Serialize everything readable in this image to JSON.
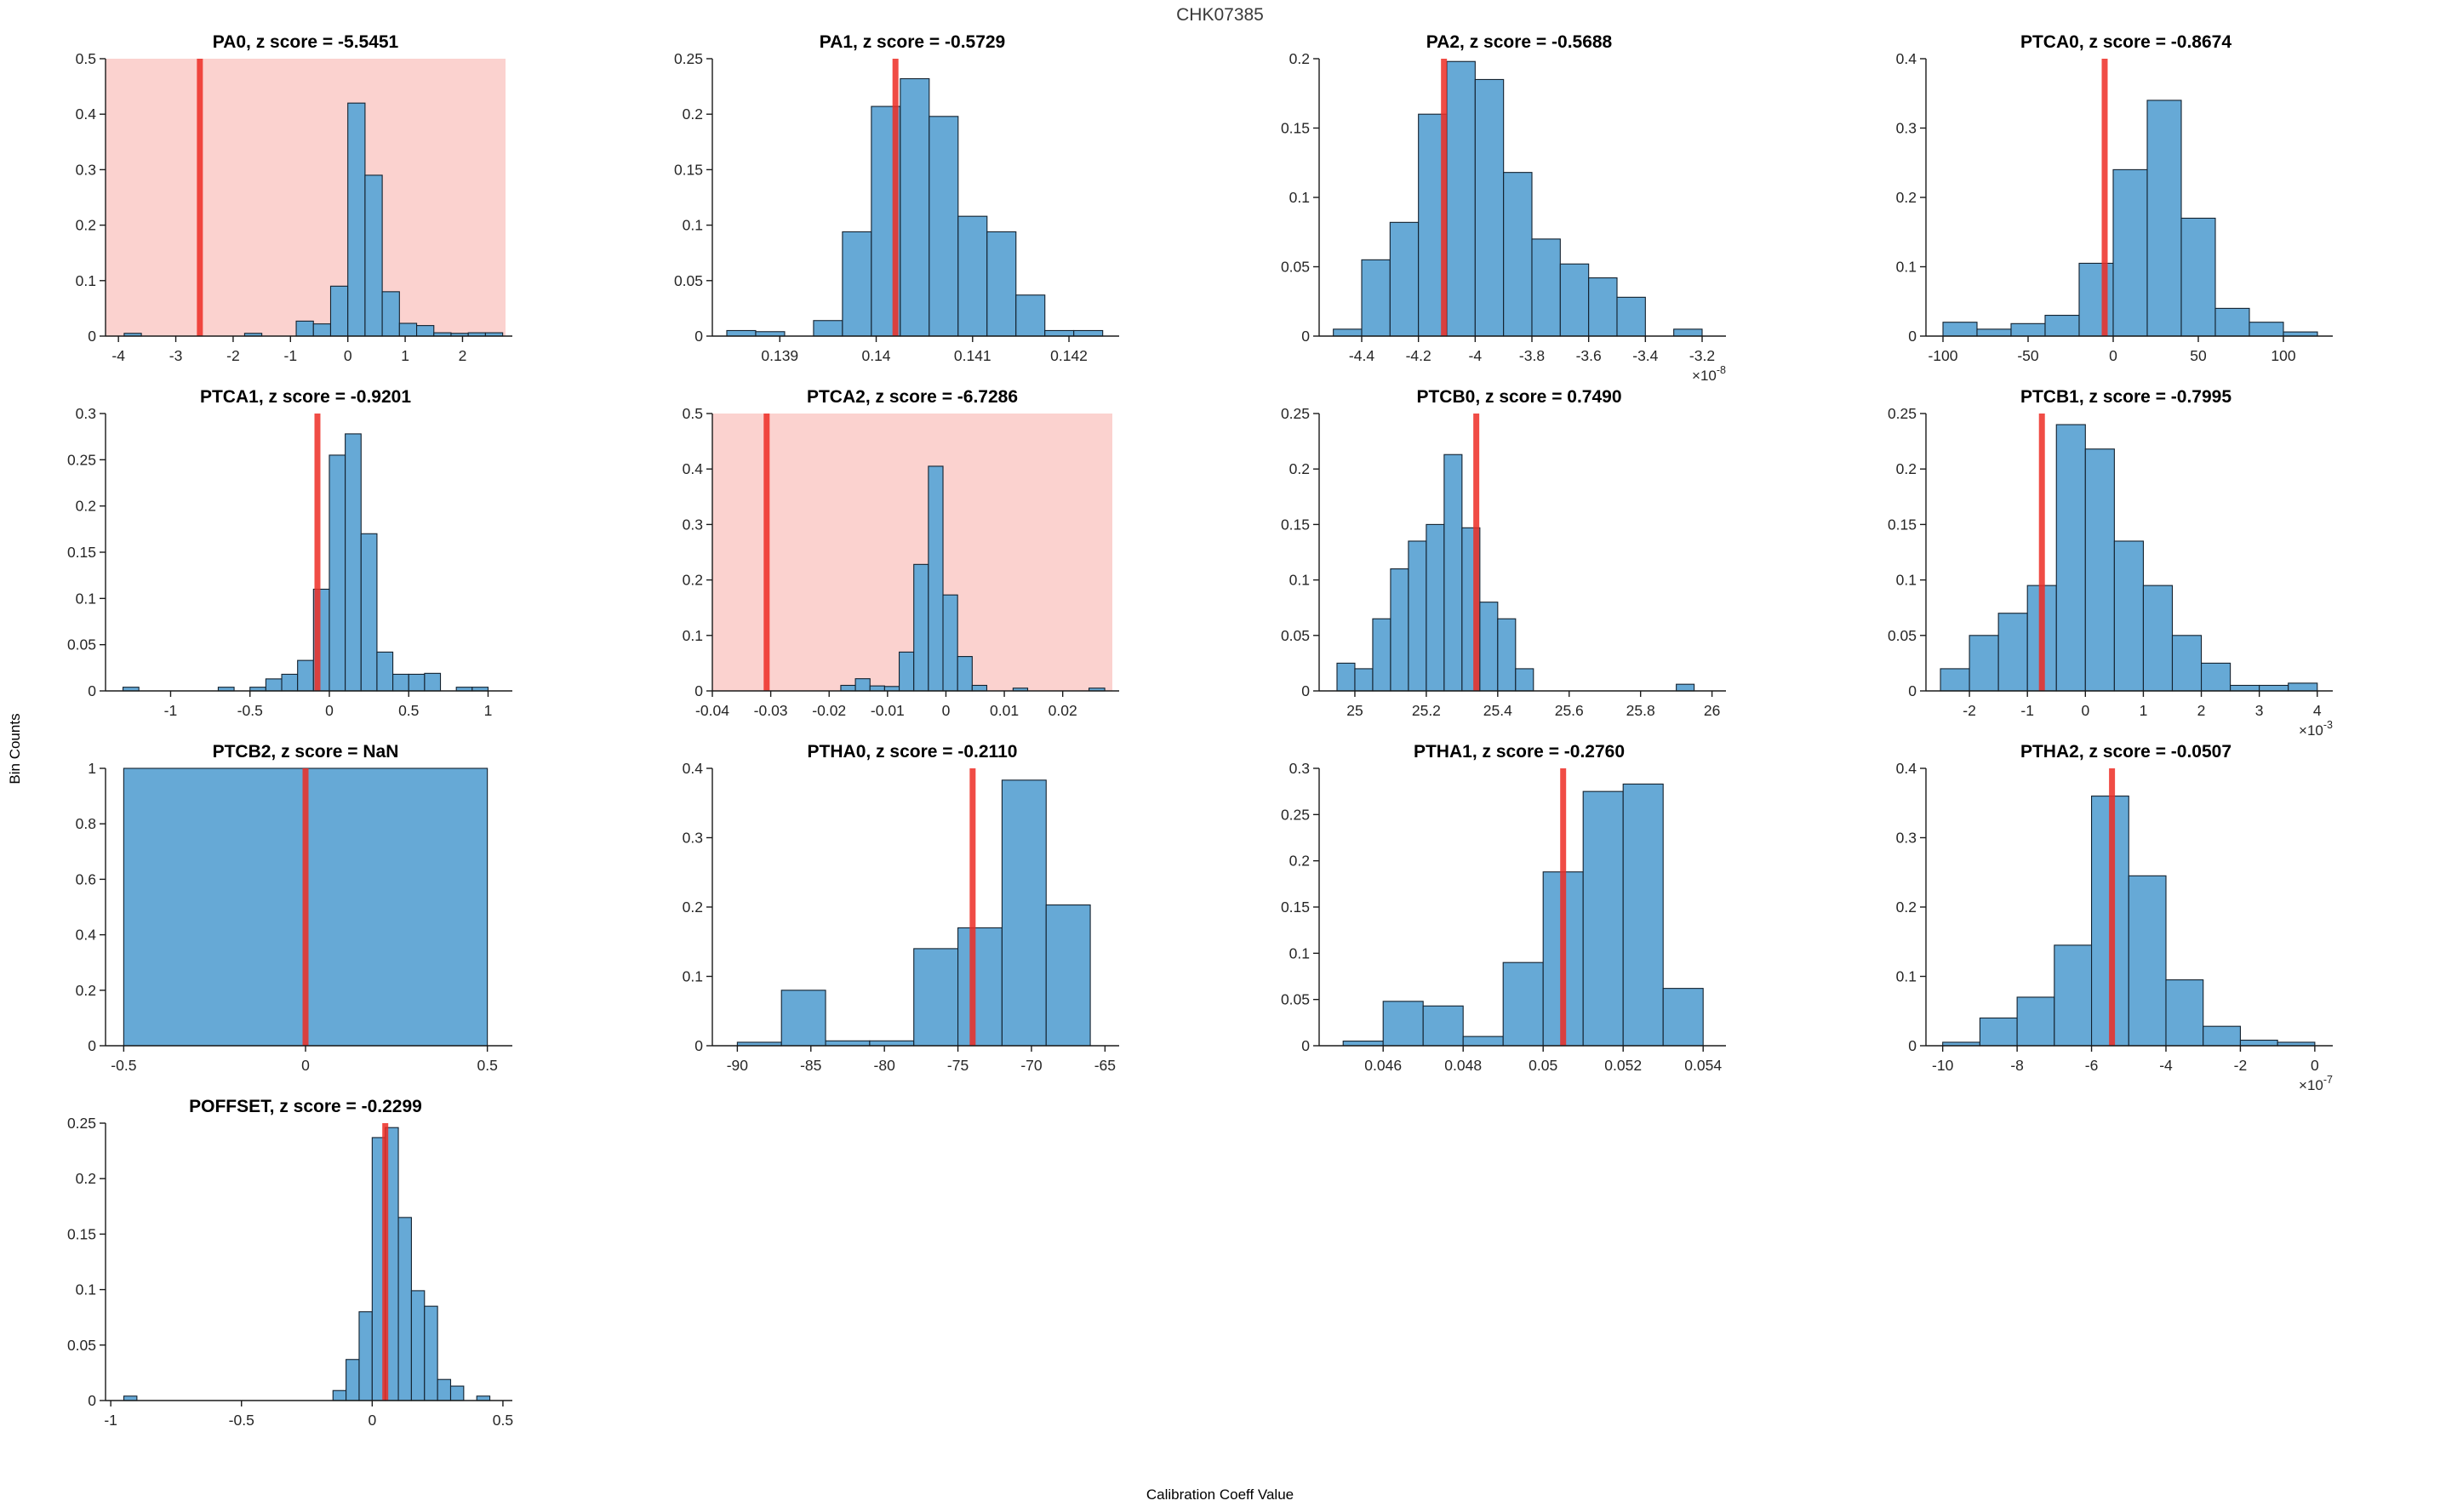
{
  "figure": {
    "title": "CHK07385",
    "ylabel": "Bin Counts",
    "xlabel": "Calibration Coeff Value",
    "colors": {
      "bar_fill": "#66a9d6",
      "bar_edge": "#13212e",
      "red_line": "#ed2d24",
      "alert_background": "#fbd2cf",
      "tick_label": "#262626",
      "axis": "#1a1a1a"
    }
  },
  "chart_data": [
    {
      "type": "histogram",
      "name": "PA0",
      "title": "PA0, z score = -5.5451",
      "z_score": "-5.5451",
      "alert": true,
      "xlim": [
        -4.225,
        2.75
      ],
      "ylim": [
        0,
        0.5
      ],
      "xticks": [
        -4,
        -3,
        -2,
        -1,
        0,
        1,
        2
      ],
      "xtick_labels": [
        "-4",
        "-3",
        "-2",
        "-1",
        "0",
        "1",
        "2"
      ],
      "yticks": [
        0,
        0.1,
        0.2,
        0.3,
        0.4,
        0.5
      ],
      "ytick_labels": [
        "0",
        "0.1",
        "0.2",
        "0.3",
        "0.4",
        "0.5"
      ],
      "exponent": null,
      "red_line_x": -2.58,
      "bars": [
        [
          -3.9,
          -3.6,
          0.005
        ],
        [
          -1.8,
          -1.5,
          0.005
        ],
        [
          -0.9,
          -0.6,
          0.027
        ],
        [
          -0.6,
          -0.3,
          0.022
        ],
        [
          -0.3,
          0,
          0.09
        ],
        [
          0,
          0.3,
          0.42
        ],
        [
          0.3,
          0.6,
          0.29
        ],
        [
          0.6,
          0.9,
          0.08
        ],
        [
          0.9,
          1.2,
          0.023
        ],
        [
          1.2,
          1.5,
          0.019
        ],
        [
          1.5,
          1.8,
          0.006
        ],
        [
          1.8,
          2.1,
          0.005
        ],
        [
          2.1,
          2.4,
          0.006
        ],
        [
          2.4,
          2.7,
          0.006
        ]
      ]
    },
    {
      "type": "histogram",
      "name": "PA1",
      "title": "PA1, z score = -0.5729",
      "z_score": "-0.5729",
      "alert": false,
      "xlim": [
        0.1383,
        0.14245
      ],
      "ylim": [
        0,
        0.25
      ],
      "xticks": [
        0.139,
        0.14,
        0.141,
        0.142
      ],
      "xtick_labels": [
        "0.139",
        "0.14",
        "0.141",
        "0.142"
      ],
      "yticks": [
        0,
        0.05,
        0.1,
        0.15,
        0.2,
        0.25
      ],
      "ytick_labels": [
        "0",
        "0.05",
        "0.1",
        "0.15",
        "0.2",
        "0.25"
      ],
      "exponent": null,
      "red_line_x": 0.1402,
      "bars": [
        [
          0.13845,
          0.13875,
          0.005
        ],
        [
          0.13875,
          0.13905,
          0.004
        ],
        [
          0.13935,
          0.13965,
          0.014
        ],
        [
          0.13965,
          0.13995,
          0.094
        ],
        [
          0.13995,
          0.14025,
          0.207
        ],
        [
          0.14025,
          0.14055,
          0.232
        ],
        [
          0.14055,
          0.14085,
          0.198
        ],
        [
          0.14085,
          0.14115,
          0.108
        ],
        [
          0.14115,
          0.14145,
          0.094
        ],
        [
          0.14145,
          0.14175,
          0.037
        ],
        [
          0.14175,
          0.14205,
          0.005
        ],
        [
          0.14205,
          0.14235,
          0.005
        ]
      ]
    },
    {
      "type": "histogram",
      "name": "PA2",
      "title": "PA2, z score = -0.5688",
      "z_score": "-0.5688",
      "alert": false,
      "xlim": [
        -4.55,
        -3.14
      ],
      "ylim": [
        0,
        0.2
      ],
      "xticks": [
        -4.4,
        -4.2,
        -4,
        -3.8,
        -3.6,
        -3.4,
        -3.2
      ],
      "xtick_labels": [
        "-4.4",
        "-4.2",
        "-4",
        "-3.8",
        "-3.6",
        "-3.4",
        "-3.2"
      ],
      "yticks": [
        0,
        0.05,
        0.1,
        0.15,
        0.2
      ],
      "ytick_labels": [
        "0",
        "0.05",
        "0.1",
        "0.15",
        "0.2"
      ],
      "exponent": "-8",
      "red_line_x": -4.11,
      "bars": [
        [
          -4.5,
          -4.4,
          0.005
        ],
        [
          -4.4,
          -4.3,
          0.055
        ],
        [
          -4.3,
          -4.2,
          0.082
        ],
        [
          -4.2,
          -4.1,
          0.16
        ],
        [
          -4.1,
          -4.0,
          0.198
        ],
        [
          -4.0,
          -3.9,
          0.185
        ],
        [
          -3.9,
          -3.8,
          0.118
        ],
        [
          -3.8,
          -3.7,
          0.07
        ],
        [
          -3.7,
          -3.6,
          0.052
        ],
        [
          -3.6,
          -3.5,
          0.042
        ],
        [
          -3.5,
          -3.4,
          0.028
        ],
        [
          -3.3,
          -3.2,
          0.005
        ]
      ]
    },
    {
      "type": "histogram",
      "name": "PTCA0",
      "title": "PTCA0, z score = -0.8674",
      "z_score": "-0.8674",
      "alert": false,
      "xlim": [
        -110,
        125
      ],
      "ylim": [
        0,
        0.4
      ],
      "xticks": [
        -100,
        -50,
        0,
        50,
        100
      ],
      "xtick_labels": [
        "-100",
        "-50",
        "0",
        "50",
        "100"
      ],
      "yticks": [
        0,
        0.1,
        0.2,
        0.3,
        0.4
      ],
      "ytick_labels": [
        "0",
        "0.1",
        "0.2",
        "0.3",
        "0.4"
      ],
      "exponent": null,
      "red_line_x": -5,
      "bars": [
        [
          -100,
          -80,
          0.02
        ],
        [
          -80,
          -60,
          0.01
        ],
        [
          -60,
          -40,
          0.018
        ],
        [
          -40,
          -20,
          0.03
        ],
        [
          -20,
          0,
          0.105
        ],
        [
          0,
          20,
          0.24
        ],
        [
          20,
          40,
          0.34
        ],
        [
          40,
          60,
          0.17
        ],
        [
          60,
          80,
          0.04
        ],
        [
          80,
          100,
          0.02
        ],
        [
          100,
          120,
          0.006
        ]
      ]
    },
    {
      "type": "histogram",
      "name": "PTCA1",
      "title": "PTCA1, z score = -0.9201",
      "z_score": "-0.9201",
      "alert": false,
      "xlim": [
        -1.41,
        1.11
      ],
      "ylim": [
        0,
        0.3
      ],
      "xticks": [
        -1,
        -0.5,
        0,
        0.5,
        1
      ],
      "xtick_labels": [
        "-1",
        "-0.5",
        "0",
        "0.5",
        "1"
      ],
      "yticks": [
        0,
        0.05,
        0.1,
        0.15,
        0.2,
        0.25,
        0.3
      ],
      "ytick_labels": [
        "0",
        "0.05",
        "0.1",
        "0.15",
        "0.2",
        "0.25",
        "0.3"
      ],
      "exponent": null,
      "red_line_x": -0.075,
      "bars": [
        [
          -1.3,
          -1.2,
          0.004
        ],
        [
          -0.7,
          -0.6,
          0.004
        ],
        [
          -0.5,
          -0.4,
          0.004
        ],
        [
          -0.4,
          -0.3,
          0.013
        ],
        [
          -0.3,
          -0.2,
          0.018
        ],
        [
          -0.2,
          -0.1,
          0.033
        ],
        [
          -0.1,
          0,
          0.11
        ],
        [
          0,
          0.1,
          0.255
        ],
        [
          0.1,
          0.2,
          0.278
        ],
        [
          0.2,
          0.3,
          0.17
        ],
        [
          0.3,
          0.4,
          0.042
        ],
        [
          0.4,
          0.5,
          0.018
        ],
        [
          0.5,
          0.6,
          0.018
        ],
        [
          0.6,
          0.7,
          0.019
        ],
        [
          0.8,
          0.9,
          0.004
        ],
        [
          0.9,
          1.0,
          0.004
        ]
      ]
    },
    {
      "type": "histogram",
      "name": "PTCA2",
      "title": "PTCA2, z score = -6.7286",
      "z_score": "-6.7286",
      "alert": true,
      "xlim": [
        -0.04,
        0.0285
      ],
      "ylim": [
        0,
        0.5
      ],
      "xticks": [
        -0.04,
        -0.03,
        -0.02,
        -0.01,
        0,
        0.01,
        0.02
      ],
      "xtick_labels": [
        "-0.04",
        "-0.03",
        "-0.02",
        "-0.01",
        "0",
        "0.01",
        "0.02"
      ],
      "yticks": [
        0,
        0.1,
        0.2,
        0.3,
        0.4,
        0.5
      ],
      "ytick_labels": [
        "0",
        "0.1",
        "0.2",
        "0.3",
        "0.4",
        "0.5"
      ],
      "exponent": null,
      "red_line_x": -0.0307,
      "bars": [
        [
          -0.018,
          -0.0155,
          0.01
        ],
        [
          -0.0155,
          -0.013,
          0.022
        ],
        [
          -0.013,
          -0.0105,
          0.009
        ],
        [
          -0.0105,
          -0.008,
          0.008
        ],
        [
          -0.008,
          -0.0055,
          0.07
        ],
        [
          -0.0055,
          -0.003,
          0.228
        ],
        [
          -0.003,
          -0.0005,
          0.405
        ],
        [
          -0.0005,
          0.002,
          0.173
        ],
        [
          0.002,
          0.0045,
          0.062
        ],
        [
          0.0045,
          0.007,
          0.01
        ],
        [
          0.0115,
          0.014,
          0.005
        ],
        [
          0.0245,
          0.0272,
          0.005
        ]
      ]
    },
    {
      "type": "histogram",
      "name": "PTCB0",
      "title": "PTCB0, z score = 0.7490",
      "z_score": "0.7490",
      "alert": false,
      "xlim": [
        24.9,
        26.02
      ],
      "ylim": [
        0,
        0.25
      ],
      "xticks": [
        25,
        25.2,
        25.4,
        25.6,
        25.8,
        26
      ],
      "xtick_labels": [
        "25",
        "25.2",
        "25.4",
        "25.6",
        "25.8",
        "26"
      ],
      "yticks": [
        0,
        0.05,
        0.1,
        0.15,
        0.2,
        0.25
      ],
      "ytick_labels": [
        "0",
        "0.05",
        "0.1",
        "0.15",
        "0.2",
        "0.25"
      ],
      "exponent": null,
      "red_line_x": 25.34,
      "bars": [
        [
          24.95,
          25.0,
          0.025
        ],
        [
          25.0,
          25.05,
          0.02
        ],
        [
          25.05,
          25.1,
          0.065
        ],
        [
          25.1,
          25.15,
          0.11
        ],
        [
          25.15,
          25.2,
          0.135
        ],
        [
          25.2,
          25.25,
          0.15
        ],
        [
          25.25,
          25.3,
          0.213
        ],
        [
          25.3,
          25.35,
          0.147
        ],
        [
          25.35,
          25.4,
          0.08
        ],
        [
          25.4,
          25.45,
          0.065
        ],
        [
          25.45,
          25.5,
          0.02
        ],
        [
          25.9,
          25.95,
          0.006
        ]
      ]
    },
    {
      "type": "histogram",
      "name": "PTCB1",
      "title": "PTCB1, z score = -0.7995",
      "z_score": "-0.7995",
      "alert": false,
      "xlim": [
        -2.75,
        4.15
      ],
      "ylim": [
        0,
        0.25
      ],
      "xticks": [
        -2,
        -1,
        0,
        1,
        2,
        3,
        4
      ],
      "xtick_labels": [
        "-2",
        "-1",
        "0",
        "1",
        "2",
        "3",
        "4"
      ],
      "yticks": [
        0,
        0.05,
        0.1,
        0.15,
        0.2,
        0.25
      ],
      "ytick_labels": [
        "0",
        "0.05",
        "0.1",
        "0.15",
        "0.2",
        "0.25"
      ],
      "exponent": "-3",
      "red_line_x": -0.75,
      "bars": [
        [
          -2.5,
          -2,
          0.02
        ],
        [
          -2,
          -1.5,
          0.05
        ],
        [
          -1.5,
          -1,
          0.07
        ],
        [
          -1,
          -0.5,
          0.095
        ],
        [
          -0.5,
          0,
          0.24
        ],
        [
          0,
          0.5,
          0.218
        ],
        [
          0.5,
          1,
          0.135
        ],
        [
          1,
          1.5,
          0.095
        ],
        [
          1.5,
          2,
          0.05
        ],
        [
          2,
          2.5,
          0.025
        ],
        [
          2.5,
          3,
          0.005
        ],
        [
          3,
          3.5,
          0.005
        ],
        [
          3.5,
          4,
          0.007
        ]
      ]
    },
    {
      "type": "histogram",
      "name": "PTCB2",
      "title": "PTCB2, z score = NaN",
      "z_score": "NaN",
      "alert": false,
      "xlim": [
        -0.55,
        0.55
      ],
      "ylim": [
        0,
        1
      ],
      "xticks": [
        -0.5,
        0,
        0.5
      ],
      "xtick_labels": [
        "-0.5",
        "0",
        "0.5"
      ],
      "yticks": [
        0,
        0.2,
        0.4,
        0.6,
        0.8,
        1
      ],
      "ytick_labels": [
        "0",
        "0.2",
        "0.4",
        "0.6",
        "0.8",
        "1"
      ],
      "exponent": null,
      "red_line_x": 0,
      "bars": [
        [
          -0.5,
          0.5,
          1
        ]
      ]
    },
    {
      "type": "histogram",
      "name": "PTHA0",
      "title": "PTHA0, z score = -0.2110",
      "z_score": "-0.2110",
      "alert": false,
      "xlim": [
        -91.7,
        -64.5
      ],
      "ylim": [
        0,
        0.4
      ],
      "xticks": [
        -90,
        -85,
        -80,
        -75,
        -70,
        -65
      ],
      "xtick_labels": [
        "-90",
        "-85",
        "-80",
        "-75",
        "-70",
        "-65"
      ],
      "yticks": [
        0,
        0.1,
        0.2,
        0.3,
        0.4
      ],
      "ytick_labels": [
        "0",
        "0.1",
        "0.2",
        "0.3",
        "0.4"
      ],
      "exponent": null,
      "red_line_x": -74,
      "bars": [
        [
          -90,
          -87,
          0.005
        ],
        [
          -87,
          -84,
          0.08
        ],
        [
          -84,
          -81,
          0.007
        ],
        [
          -81,
          -78,
          0.007
        ],
        [
          -78,
          -75,
          0.14
        ],
        [
          -75,
          -72,
          0.17
        ],
        [
          -72,
          -69,
          0.383
        ],
        [
          -69,
          -66,
          0.203
        ]
      ]
    },
    {
      "type": "histogram",
      "name": "PTHA1",
      "title": "PTHA1, z score = -0.2760",
      "z_score": "-0.2760",
      "alert": false,
      "xlim": [
        0.0444,
        0.0544
      ],
      "ylim": [
        0,
        0.3
      ],
      "xticks": [
        0.046,
        0.048,
        0.05,
        0.052,
        0.054
      ],
      "xtick_labels": [
        "0.046",
        "0.048",
        "0.05",
        "0.052",
        "0.054"
      ],
      "yticks": [
        0,
        0.05,
        0.1,
        0.15,
        0.2,
        0.25,
        0.3
      ],
      "ytick_labels": [
        "0",
        "0.05",
        "0.1",
        "0.15",
        "0.2",
        "0.25",
        "0.3"
      ],
      "exponent": null,
      "red_line_x": 0.0505,
      "bars": [
        [
          0.045,
          0.046,
          0.005
        ],
        [
          0.046,
          0.047,
          0.048
        ],
        [
          0.047,
          0.048,
          0.043
        ],
        [
          0.048,
          0.049,
          0.01
        ],
        [
          0.049,
          0.05,
          0.09
        ],
        [
          0.05,
          0.051,
          0.188
        ],
        [
          0.051,
          0.052,
          0.275
        ],
        [
          0.052,
          0.053,
          0.283
        ],
        [
          0.053,
          0.054,
          0.062
        ]
      ]
    },
    {
      "type": "histogram",
      "name": "PTHA2",
      "title": "PTHA2, z score = -0.0507",
      "z_score": "-0.0507",
      "alert": false,
      "xlim": [
        -10.45,
        0.3
      ],
      "ylim": [
        0,
        0.4
      ],
      "xticks": [
        -10,
        -8,
        -6,
        -4,
        -2,
        0
      ],
      "xtick_labels": [
        "-10",
        "-8",
        "-6",
        "-4",
        "-2",
        "0"
      ],
      "yticks": [
        0,
        0.1,
        0.2,
        0.3,
        0.4
      ],
      "ytick_labels": [
        "0",
        "0.1",
        "0.2",
        "0.3",
        "0.4"
      ],
      "exponent": "-7",
      "red_line_x": -5.45,
      "bars": [
        [
          -10,
          -9,
          0.005
        ],
        [
          -9,
          -8,
          0.04
        ],
        [
          -8,
          -7,
          0.07
        ],
        [
          -7,
          -6,
          0.145
        ],
        [
          -6,
          -5,
          0.36
        ],
        [
          -5,
          -4,
          0.245
        ],
        [
          -4,
          -3,
          0.095
        ],
        [
          -3,
          -2,
          0.028
        ],
        [
          -2,
          -1,
          0.008
        ],
        [
          -1,
          0,
          0.005
        ]
      ]
    },
    {
      "type": "histogram",
      "name": "POFFSET",
      "title": "POFFSET, z score = -0.2299",
      "z_score": "-0.2299",
      "alert": false,
      "xlim": [
        -1.02,
        0.51
      ],
      "ylim": [
        0,
        0.25
      ],
      "xticks": [
        -1,
        -0.5,
        0,
        0.5
      ],
      "xtick_labels": [
        "-1",
        "-0.5",
        "0",
        "0.5"
      ],
      "yticks": [
        0,
        0.05,
        0.1,
        0.15,
        0.2,
        0.25
      ],
      "ytick_labels": [
        "0",
        "0.05",
        "0.1",
        "0.15",
        "0.2",
        "0.25"
      ],
      "exponent": null,
      "red_line_x": 0.05,
      "bars": [
        [
          -0.95,
          -0.9,
          0.004
        ],
        [
          -0.15,
          -0.1,
          0.009
        ],
        [
          -0.1,
          -0.05,
          0.037
        ],
        [
          -0.05,
          0,
          0.08
        ],
        [
          0,
          0.05,
          0.237
        ],
        [
          0.05,
          0.1,
          0.246
        ],
        [
          0.1,
          0.15,
          0.165
        ],
        [
          0.15,
          0.2,
          0.099
        ],
        [
          0.2,
          0.25,
          0.085
        ],
        [
          0.25,
          0.3,
          0.019
        ],
        [
          0.3,
          0.35,
          0.013
        ],
        [
          0.4,
          0.45,
          0.004
        ]
      ]
    }
  ]
}
